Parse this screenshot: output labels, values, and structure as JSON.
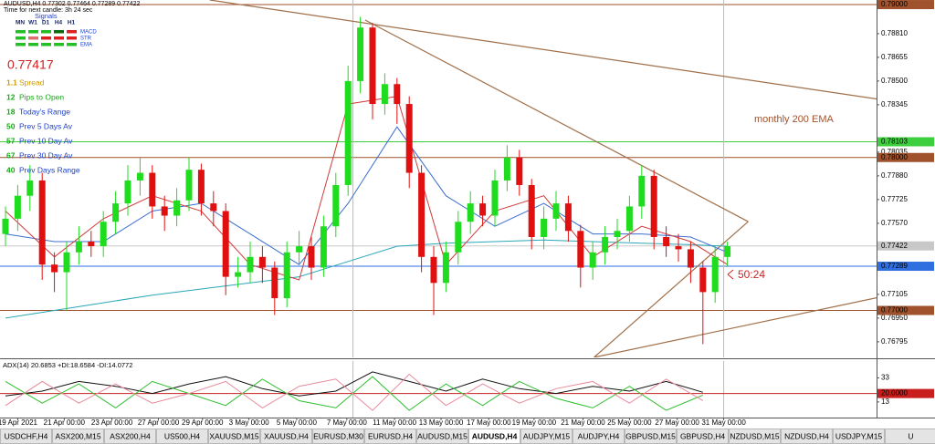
{
  "chart_data": {
    "type": "candlestick",
    "up_color": "#1fdc1f",
    "down_color": "#e01010",
    "ylim": [
      0.76693,
      0.7903
    ],
    "yticks": [
      {
        "value": 0.7881,
        "label": "0.78810"
      },
      {
        "value": 0.78655,
        "label": "0.78655"
      },
      {
        "value": 0.785,
        "label": "0.78500"
      },
      {
        "value": 0.78345,
        "label": "0.78345"
      },
      {
        "value": 0.78035,
        "label": "0.78035"
      },
      {
        "value": 0.7788,
        "label": "0.77880"
      },
      {
        "value": 0.77725,
        "label": "0.77725"
      },
      {
        "value": 0.7757,
        "label": "0.77570"
      },
      {
        "value": 0.77105,
        "label": "0.77105"
      },
      {
        "value": 0.7695,
        "label": "0.76950"
      },
      {
        "value": 0.76795,
        "label": "0.76795"
      }
    ],
    "price_markers": [
      {
        "value": 0.79,
        "label": "0.79000",
        "color": "#a0522d",
        "text_color": "#ffffff"
      },
      {
        "value": 0.78103,
        "label": "0.78103",
        "color": "#3ecf3e",
        "text_color": "#ffffff"
      },
      {
        "value": 0.78,
        "label": "0.78000",
        "color": "#a0522d",
        "text_color": "#ffffff"
      },
      {
        "value": 0.77422,
        "label": "0.77422",
        "color": "#c8c8c8",
        "text_color": "#000000"
      },
      {
        "value": 0.77289,
        "label": "0.77289",
        "color": "#2f6fe0",
        "text_color": "#ffffff"
      },
      {
        "value": 0.77,
        "label": "0.77000",
        "color": "#a0522d",
        "text_color": "#ffffff"
      }
    ],
    "xticks": [
      {
        "value": 1.0,
        "label": "19 Apr 2021"
      },
      {
        "value": 4.8,
        "label": "21 Apr 00:00"
      },
      {
        "value": 8.7,
        "label": "23 Apr 00:00"
      },
      {
        "value": 12.5,
        "label": "27 Apr 00:00"
      },
      {
        "value": 16.1,
        "label": "29 Apr 00:00"
      },
      {
        "value": 19.9,
        "label": "3 May 00:00"
      },
      {
        "value": 23.8,
        "label": "5 May 00:00"
      },
      {
        "value": 27.9,
        "label": "7 May 00:00"
      },
      {
        "value": 31.8,
        "label": "11 May 00:00"
      },
      {
        "value": 35.6,
        "label": "13 May 00:00"
      },
      {
        "value": 39.5,
        "label": "17 May 00:00"
      },
      {
        "value": 43.2,
        "label": "19 May 00:00"
      },
      {
        "value": 47.2,
        "label": "21 May 00:00"
      },
      {
        "value": 51.0,
        "label": "25 May 00:00"
      },
      {
        "value": 54.9,
        "label": "27 May 00:00"
      },
      {
        "value": 58.7,
        "label": "31 May 00:00"
      }
    ],
    "vlines": [
      28.4,
      58.7
    ],
    "open": [
      0.775,
      0.776,
      0.7775,
      0.7785,
      0.773,
      0.7725,
      0.7738,
      0.7745,
      0.7742,
      0.7758,
      0.777,
      0.7785,
      0.779,
      0.7768,
      0.7762,
      0.7772,
      0.7792,
      0.777,
      0.7765,
      0.7722,
      0.7725,
      0.7735,
      0.7728,
      0.7708,
      0.7738,
      0.7742,
      0.7728,
      0.7755,
      0.7782,
      0.785,
      0.7885,
      0.7835,
      0.7848,
      0.7835,
      0.779,
      0.7735,
      0.7718,
      0.7738,
      0.7758,
      0.777,
      0.7762,
      0.7785,
      0.78,
      0.7782,
      0.7748,
      0.776,
      0.777,
      0.7752,
      0.7728,
      0.7738,
      0.7748,
      0.7752,
      0.7768,
      0.7788,
      0.7748,
      0.7742,
      0.774,
      0.7728,
      0.7712,
      0.7735
    ],
    "high": [
      0.7768,
      0.7782,
      0.7795,
      0.779,
      0.7738,
      0.7745,
      0.7755,
      0.7752,
      0.7765,
      0.7778,
      0.7795,
      0.78,
      0.7795,
      0.7775,
      0.778,
      0.78,
      0.7796,
      0.7778,
      0.777,
      0.7735,
      0.7745,
      0.7742,
      0.7732,
      0.7745,
      0.7752,
      0.7748,
      0.7762,
      0.779,
      0.786,
      0.7892,
      0.7888,
      0.7855,
      0.7852,
      0.784,
      0.7795,
      0.7742,
      0.7745,
      0.7765,
      0.7778,
      0.7775,
      0.7792,
      0.7808,
      0.7805,
      0.7786,
      0.7768,
      0.7778,
      0.7775,
      0.7756,
      0.7745,
      0.7755,
      0.776,
      0.7775,
      0.7795,
      0.7792,
      0.7755,
      0.775,
      0.7745,
      0.7732,
      0.7742,
      0.7745
    ],
    "low": [
      0.7742,
      0.7752,
      0.7765,
      0.772,
      0.7712,
      0.77,
      0.773,
      0.7735,
      0.7735,
      0.775,
      0.7762,
      0.7775,
      0.776,
      0.7752,
      0.7755,
      0.7765,
      0.7762,
      0.7755,
      0.771,
      0.7715,
      0.7718,
      0.7718,
      0.7697,
      0.7702,
      0.773,
      0.772,
      0.7722,
      0.7748,
      0.7775,
      0.7842,
      0.7825,
      0.7828,
      0.7822,
      0.778,
      0.7725,
      0.7697,
      0.7712,
      0.773,
      0.775,
      0.7755,
      0.7755,
      0.7778,
      0.7775,
      0.774,
      0.774,
      0.7752,
      0.7745,
      0.7715,
      0.772,
      0.773,
      0.774,
      0.7745,
      0.776,
      0.774,
      0.7735,
      0.7732,
      0.7718,
      0.7678,
      0.7705,
      0.7729
    ],
    "close": [
      0.776,
      0.7775,
      0.7785,
      0.773,
      0.7725,
      0.7738,
      0.7745,
      0.7742,
      0.7758,
      0.777,
      0.7785,
      0.779,
      0.7768,
      0.7762,
      0.7772,
      0.7792,
      0.777,
      0.7765,
      0.7722,
      0.7725,
      0.7735,
      0.7728,
      0.7708,
      0.7738,
      0.7742,
      0.7728,
      0.7755,
      0.7782,
      0.785,
      0.7885,
      0.7835,
      0.7848,
      0.7835,
      0.779,
      0.7735,
      0.7718,
      0.7738,
      0.7758,
      0.777,
      0.7762,
      0.7785,
      0.78,
      0.7782,
      0.7748,
      0.776,
      0.777,
      0.7752,
      0.7728,
      0.7738,
      0.7748,
      0.7752,
      0.7768,
      0.7788,
      0.7748,
      0.7742,
      0.774,
      0.7728,
      0.7712,
      0.7735,
      0.7742
    ],
    "overlays": [
      {
        "color": "#2aa7b8",
        "x": [
          0,
          4,
          8,
          12,
          16,
          20,
          24,
          28,
          32,
          36,
          40,
          44,
          48,
          52,
          56,
          59
        ],
        "values": [
          0.7695,
          0.77,
          0.7705,
          0.771,
          0.7714,
          0.7718,
          0.7722,
          0.7732,
          0.7742,
          0.7744,
          0.7745,
          0.7746,
          0.7745,
          0.7744,
          0.7743,
          0.7742
        ]
      },
      {
        "color": "#3b6fd0",
        "x": [
          0,
          4,
          8,
          12,
          16,
          20,
          24,
          28,
          32,
          36,
          40,
          44,
          48,
          52,
          56,
          59
        ],
        "values": [
          0.775,
          0.7745,
          0.7745,
          0.7765,
          0.777,
          0.775,
          0.773,
          0.777,
          0.782,
          0.7775,
          0.7755,
          0.777,
          0.775,
          0.775,
          0.7748,
          0.7738
        ]
      },
      {
        "color": "#d03a3a",
        "x": [
          0,
          4,
          8,
          12,
          16,
          20,
          24,
          28,
          32,
          36,
          40,
          44,
          48,
          52,
          56,
          59
        ],
        "values": [
          0.7765,
          0.7735,
          0.776,
          0.7775,
          0.7765,
          0.773,
          0.772,
          0.7835,
          0.784,
          0.773,
          0.7765,
          0.7775,
          0.7735,
          0.7755,
          0.7745,
          0.773
        ]
      }
    ],
    "trendlines": [
      {
        "color": "#a0704a",
        "x": [
          16.7,
          71.2
        ],
        "values": [
          0.7903,
          0.78383
        ]
      },
      {
        "color": "#a0704a",
        "x": [
          29.4,
          60.7
        ],
        "values": [
          0.78899,
          0.77581
        ]
      },
      {
        "color": "#a0704a",
        "x": [
          60.7,
          48.1
        ],
        "values": [
          0.77581,
          0.76693
        ]
      },
      {
        "color": "#a0704a",
        "x": [
          48.1,
          71.2
        ],
        "values": [
          0.76693,
          0.77083
        ]
      }
    ],
    "annotations": {
      "ema_label": "monthly 200 EMA",
      "timer": "50:24"
    },
    "adx": {
      "title": "ADX(14) 20.6853 +DI:18.6584 -DI:14.0772",
      "ylim": [
        0,
        47
      ],
      "yticks": [
        33,
        13
      ],
      "level": {
        "value": 20,
        "label": "20.0000",
        "color": "#c81e1e"
      },
      "x": [
        0,
        3,
        6,
        9,
        12,
        15,
        18,
        21,
        24,
        27,
        30,
        33,
        36,
        39,
        42,
        45,
        48,
        51,
        54,
        57
      ],
      "series": [
        {
          "color": "#111111",
          "values": [
            18,
            22,
            30,
            26,
            20,
            28,
            34,
            24,
            18,
            22,
            38,
            30,
            22,
            32,
            24,
            20,
            26,
            22,
            30,
            21
          ]
        },
        {
          "color": "#2fbf2f",
          "values": [
            30,
            12,
            28,
            8,
            30,
            20,
            10,
            32,
            14,
            8,
            34,
            6,
            28,
            10,
            30,
            16,
            8,
            26,
            6,
            18.66
          ]
        },
        {
          "color": "#e88a9a",
          "values": [
            10,
            30,
            12,
            28,
            12,
            20,
            30,
            8,
            26,
            32,
            6,
            36,
            10,
            28,
            12,
            24,
            30,
            12,
            32,
            14.08
          ]
        }
      ]
    }
  },
  "info_panel": {
    "header": "AUDUSD,H4 0.77302 0.77464 0.77289 0.77422",
    "timer": "Time for next candle: 3h 24 sec",
    "signals_title": "Signals",
    "timeframes": [
      "MN",
      "W1",
      "D1",
      "H4",
      "H1"
    ],
    "signal_rows": [
      {
        "name": "MACD",
        "colors": [
          "#22c022",
          "#22c022",
          "#22c022",
          "#0a6a0a",
          "#e02020"
        ]
      },
      {
        "name": "STR",
        "colors": [
          "#22c022",
          "#e07070",
          "#e02020",
          "#e02020",
          "#e02020"
        ]
      },
      {
        "name": "EMA",
        "colors": [
          "#22c022",
          "#22c022",
          "#22c022",
          "#22c022",
          "#22c022"
        ]
      }
    ],
    "price": "0.77417",
    "stats": [
      {
        "value": "1.1",
        "label": "Spread",
        "color": "#d09a00",
        "label_color": "#d09a00"
      },
      {
        "value": "12",
        "label": "Pips to Open",
        "color": "#18a818",
        "label_color": "#18a818"
      },
      {
        "value": "18",
        "label": "Today's Range",
        "color": "#18a818",
        "label_color": "#1a3fcc"
      },
      {
        "value": "50",
        "label": "Prev 5 Days Av",
        "color": "#18a818",
        "label_color": "#1a3fcc"
      },
      {
        "value": "57",
        "label": "Prev 10 Day Av",
        "color": "#18a818",
        "label_color": "#1a3fcc"
      },
      {
        "value": "67",
        "label": "Prev 30 Day Av",
        "color": "#18a818",
        "label_color": "#1a3fcc"
      },
      {
        "value": "40",
        "label": "Prev Days Range",
        "color": "#18a818",
        "label_color": "#1a3fcc"
      }
    ]
  },
  "tabs": {
    "items": [
      "USDCHF,H4",
      "ASX200,M15",
      "ASX200,H4",
      "US500,H4",
      "XAUUSD,M15",
      "XAUUSD,H4",
      "EURUSD,M30",
      "EURUSD,H4",
      "AUDUSD,M15",
      "AUDUSD,H4",
      "AUDJPY,M15",
      "AUDJPY,H4",
      "GBPUSD,M15",
      "GBPUSD,H4",
      "NZDUSD,M15",
      "NZDUSD,H4",
      "USDJPY,M15",
      "U"
    ],
    "active": 9
  }
}
